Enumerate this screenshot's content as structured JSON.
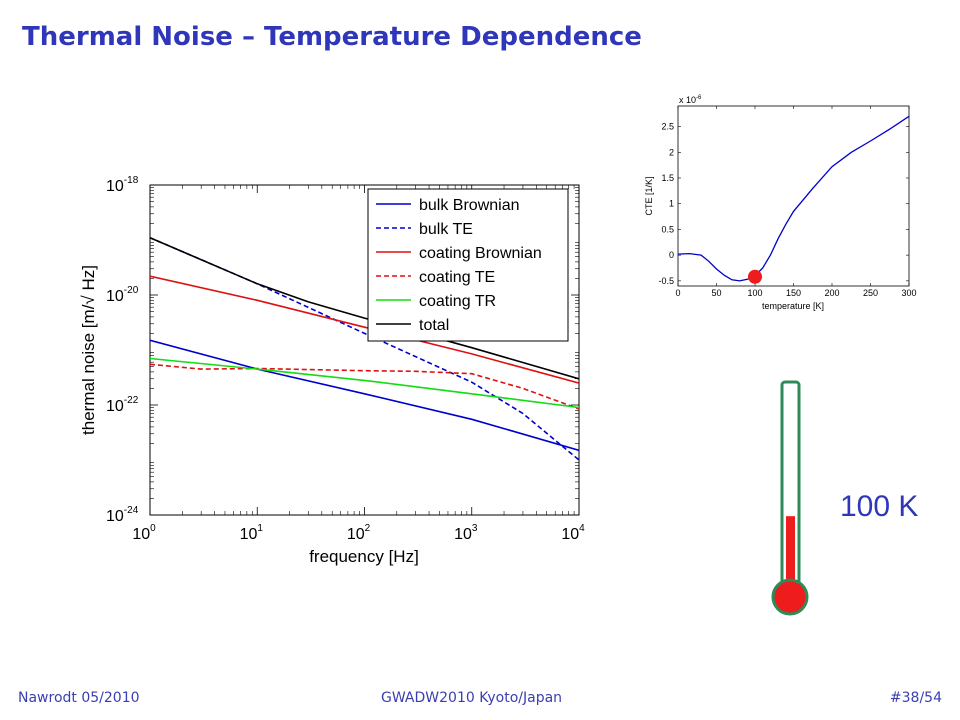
{
  "slide": {
    "title": "Thermal Noise – Temperature Dependence",
    "temperature_label": "100 K"
  },
  "thermometer": {
    "level_fraction": 0.38,
    "colors": {
      "tube": "#2e8b57",
      "fluid": "#ee1c1c"
    }
  },
  "footer": {
    "left": "Nawrodt 05/2010",
    "center": "GWADW2010 Kyoto/Japan",
    "right": "#38/54"
  },
  "chart_data": [
    {
      "type": "line",
      "xlabel": "frequency [Hz]",
      "ylabel": "thermal noise [m/√ Hz]",
      "xscale": "log",
      "yscale": "log",
      "xlim": [
        1,
        10000
      ],
      "ylim": [
        1e-24,
        1e-18
      ],
      "xticks": [
        {
          "v": 1,
          "base": "10",
          "exp": "0"
        },
        {
          "v": 10,
          "base": "10",
          "exp": "1"
        },
        {
          "v": 100,
          "base": "10",
          "exp": "2"
        },
        {
          "v": 1000,
          "base": "10",
          "exp": "3"
        },
        {
          "v": 10000,
          "base": "10",
          "exp": "4"
        }
      ],
      "yticks": [
        {
          "v": 1e-18,
          "base": "10",
          "exp": "-18"
        },
        {
          "v": 1e-20,
          "base": "10",
          "exp": "-20"
        },
        {
          "v": 1e-22,
          "base": "10",
          "exp": "-22"
        },
        {
          "v": 1e-24,
          "base": "10",
          "exp": "-24"
        }
      ],
      "grid": false,
      "legend_position": "top-right",
      "series": [
        {
          "name": "bulk Brownian",
          "color": "#0000cc",
          "dash": "solid",
          "x": [
            1,
            10,
            100,
            1000,
            10000
          ],
          "y": [
            1.5e-21,
            4.5e-22,
            1.6e-22,
            5.5e-23,
            1.5e-23
          ]
        },
        {
          "name": "bulk TE",
          "color": "#0000cc",
          "dash": "dashed",
          "x": [
            1,
            10,
            100,
            1000,
            3000,
            10000
          ],
          "y": [
            1.1e-19,
            1.6e-20,
            2e-21,
            2.6e-22,
            7e-23,
            1e-23
          ]
        },
        {
          "name": "coating Brownian",
          "color": "#dd1111",
          "dash": "solid",
          "x": [
            1,
            10,
            100,
            1000,
            10000
          ],
          "y": [
            2.2e-20,
            8e-21,
            2.6e-21,
            8.5e-22,
            2.5e-22
          ]
        },
        {
          "name": "coating TE",
          "color": "#dd1111",
          "dash": "dashed",
          "x": [
            1,
            3,
            10,
            100,
            300,
            1000,
            3000,
            10000
          ],
          "y": [
            5.5e-22,
            4.5e-22,
            4.6e-22,
            4.2e-22,
            4.1e-22,
            3.7e-22,
            2e-22,
            8.5e-23
          ]
        },
        {
          "name": "coating TR",
          "color": "#11dd11",
          "dash": "solid",
          "x": [
            1,
            10,
            100,
            1000,
            10000
          ],
          "y": [
            7e-22,
            4.5e-22,
            2.8e-22,
            1.6e-22,
            9e-23
          ]
        },
        {
          "name": "total",
          "color": "#000000",
          "dash": "solid",
          "x": [
            1,
            10,
            30,
            100,
            1000,
            10000
          ],
          "y": [
            1.1e-19,
            1.6e-20,
            7.5e-21,
            3.8e-21,
            1.1e-21,
            3e-22
          ]
        }
      ]
    },
    {
      "type": "line",
      "xlabel": "temperature [K]",
      "ylabel": "CTE [1/K]",
      "scale_note": {
        "base": "x 10",
        "exp": "-6"
      },
      "xlim": [
        0,
        300
      ],
      "ylim": [
        -0.6,
        2.9
      ],
      "xticks": [
        0,
        50,
        100,
        150,
        200,
        250,
        300
      ],
      "yticks": [
        -0.5,
        0,
        0.5,
        1,
        1.5,
        2,
        2.5
      ],
      "yticklabels": [
        "-0.5",
        "0",
        "0.5",
        "1",
        "1.5",
        "2",
        "2.5"
      ],
      "grid": false,
      "series": [
        {
          "color": "#0000cc",
          "x": [
            0,
            15,
            30,
            40,
            50,
            60,
            70,
            80,
            90,
            100,
            110,
            120,
            130,
            140,
            150,
            175,
            200,
            225,
            250,
            275,
            300
          ],
          "y": [
            0.02,
            0.03,
            0.0,
            -0.12,
            -0.27,
            -0.39,
            -0.48,
            -0.5,
            -0.47,
            -0.4,
            -0.25,
            0.0,
            0.32,
            0.6,
            0.85,
            1.3,
            1.72,
            2.0,
            2.22,
            2.45,
            2.7
          ]
        }
      ],
      "marker": {
        "x": 100,
        "y": -0.42,
        "color": "#ee1c1c"
      }
    }
  ]
}
